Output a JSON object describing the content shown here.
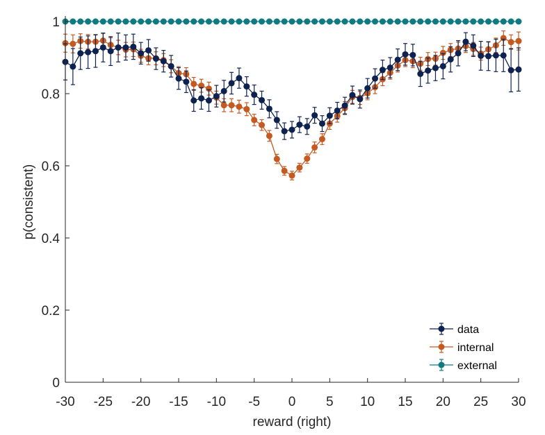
{
  "chart_data": {
    "type": "line",
    "xlabel": "reward (right)",
    "ylabel": "p(consistent)",
    "xlim": [
      -30,
      30
    ],
    "ylim": [
      0,
      1
    ],
    "x_ticks": [
      -30,
      -25,
      -20,
      -15,
      -10,
      -5,
      0,
      5,
      10,
      15,
      20,
      25,
      30
    ],
    "y_ticks": [
      0,
      0.2,
      0.4,
      0.6,
      0.8,
      1
    ],
    "y_tick_labels": [
      "0",
      "0.2",
      "0.4",
      "0.6",
      "0.8",
      "1"
    ],
    "legend_position": "bottom-right",
    "x": [
      -30,
      -29,
      -28,
      -27,
      -26,
      -25,
      -24,
      -23,
      -22,
      -21,
      -20,
      -19,
      -18,
      -17,
      -16,
      -15,
      -14,
      -13,
      -12,
      -11,
      -10,
      -9,
      -8,
      -7,
      -6,
      -5,
      -4,
      -3,
      -2,
      -1,
      0,
      1,
      2,
      3,
      4,
      5,
      6,
      7,
      8,
      9,
      10,
      11,
      12,
      13,
      14,
      15,
      16,
      17,
      18,
      19,
      20,
      21,
      22,
      23,
      24,
      25,
      26,
      27,
      28,
      29,
      30
    ],
    "series": [
      {
        "name": "data",
        "color": "#0e2250",
        "values": [
          0.888,
          0.875,
          0.912,
          0.915,
          0.918,
          0.928,
          0.918,
          0.928,
          0.928,
          0.93,
          0.912,
          0.92,
          0.897,
          0.89,
          0.876,
          0.842,
          0.833,
          0.781,
          0.787,
          0.781,
          0.793,
          0.807,
          0.829,
          0.843,
          0.82,
          0.797,
          0.782,
          0.758,
          0.727,
          0.696,
          0.7,
          0.714,
          0.709,
          0.74,
          0.717,
          0.739,
          0.753,
          0.767,
          0.796,
          0.785,
          0.815,
          0.842,
          0.866,
          0.872,
          0.894,
          0.909,
          0.907,
          0.855,
          0.864,
          0.871,
          0.876,
          0.895,
          0.912,
          0.944,
          0.933,
          0.905,
          0.904,
          0.906,
          0.906,
          0.865,
          0.867
        ],
        "errors": [
          0.05,
          0.05,
          0.045,
          0.045,
          0.045,
          0.04,
          0.04,
          0.04,
          0.035,
          0.035,
          0.03,
          0.03,
          0.03,
          0.03,
          0.03,
          0.03,
          0.03,
          0.03,
          0.03,
          0.03,
          0.03,
          0.03,
          0.03,
          0.028,
          0.027,
          0.027,
          0.025,
          0.025,
          0.023,
          0.023,
          0.023,
          0.022,
          0.022,
          0.022,
          0.022,
          0.022,
          0.023,
          0.023,
          0.025,
          0.025,
          0.027,
          0.027,
          0.027,
          0.028,
          0.03,
          0.03,
          0.03,
          0.035,
          0.035,
          0.035,
          0.035,
          0.035,
          0.035,
          0.025,
          0.03,
          0.04,
          0.04,
          0.045,
          0.045,
          0.06,
          0.06
        ]
      },
      {
        "name": "internal",
        "color": "#c45a22",
        "values": [
          0.94,
          0.938,
          0.946,
          0.944,
          0.944,
          0.947,
          0.935,
          0.928,
          0.922,
          0.923,
          0.905,
          0.898,
          0.898,
          0.893,
          0.876,
          0.857,
          0.854,
          0.827,
          0.822,
          0.814,
          0.789,
          0.768,
          0.768,
          0.764,
          0.757,
          0.727,
          0.713,
          0.683,
          0.619,
          0.586,
          0.573,
          0.595,
          0.62,
          0.651,
          0.674,
          0.717,
          0.738,
          0.76,
          0.791,
          0.788,
          0.801,
          0.818,
          0.84,
          0.858,
          0.878,
          0.893,
          0.89,
          0.883,
          0.896,
          0.897,
          0.913,
          0.921,
          0.925,
          0.932,
          0.924,
          0.911,
          0.923,
          0.934,
          0.954,
          0.943,
          0.946
        ],
        "errors": [
          0.025,
          0.025,
          0.02,
          0.02,
          0.02,
          0.02,
          0.02,
          0.02,
          0.02,
          0.02,
          0.018,
          0.018,
          0.018,
          0.018,
          0.018,
          0.018,
          0.018,
          0.018,
          0.018,
          0.018,
          0.018,
          0.018,
          0.018,
          0.018,
          0.018,
          0.016,
          0.015,
          0.015,
          0.013,
          0.012,
          0.012,
          0.012,
          0.013,
          0.015,
          0.015,
          0.016,
          0.017,
          0.018,
          0.018,
          0.018,
          0.018,
          0.018,
          0.018,
          0.018,
          0.018,
          0.018,
          0.018,
          0.018,
          0.018,
          0.018,
          0.018,
          0.018,
          0.018,
          0.018,
          0.018,
          0.018,
          0.02,
          0.02,
          0.02,
          0.02,
          0.025
        ]
      },
      {
        "name": "external",
        "color": "#0f7a82",
        "values": [
          1,
          1,
          1,
          1,
          1,
          1,
          1,
          1,
          1,
          1,
          1,
          1,
          1,
          1,
          1,
          1,
          1,
          1,
          1,
          1,
          1,
          1,
          1,
          1,
          1,
          1,
          1,
          1,
          1,
          1,
          1,
          1,
          1,
          1,
          1,
          1,
          1,
          1,
          1,
          1,
          1,
          1,
          1,
          1,
          1,
          1,
          1,
          1,
          1,
          1,
          1,
          1,
          1,
          1,
          1,
          1,
          1,
          1,
          1,
          1,
          1
        ],
        "errors": [
          0,
          0,
          0,
          0,
          0,
          0,
          0,
          0,
          0,
          0,
          0,
          0,
          0,
          0,
          0,
          0,
          0,
          0,
          0,
          0,
          0,
          0,
          0,
          0,
          0,
          0,
          0,
          0,
          0,
          0,
          0,
          0,
          0,
          0,
          0,
          0,
          0,
          0,
          0,
          0,
          0,
          0,
          0,
          0,
          0,
          0,
          0,
          0,
          0,
          0,
          0,
          0,
          0,
          0,
          0,
          0,
          0,
          0,
          0,
          0,
          0
        ]
      }
    ]
  }
}
